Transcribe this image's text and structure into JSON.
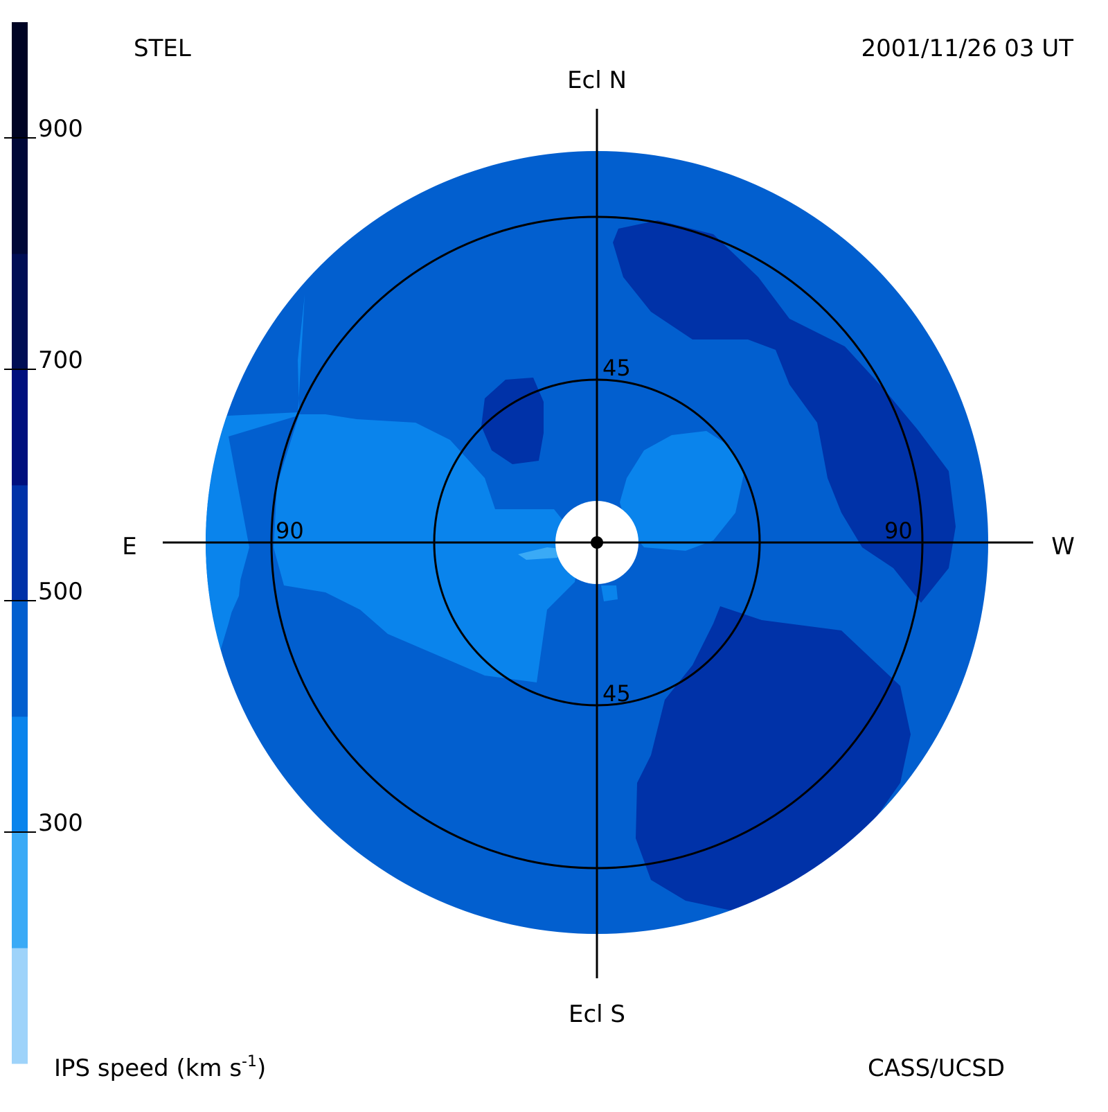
{
  "header": {
    "source": "STEL",
    "datetime": "2001/11/26 03 UT"
  },
  "footer": {
    "credit": "CASS/UCSD"
  },
  "colorbar": {
    "label_main": "IPS speed (km s",
    "label_exp": "-1",
    "label_close": ")",
    "ticks": [
      "900",
      "700",
      "500",
      "300"
    ],
    "bands": [
      {
        "from": 100,
        "to": 200,
        "color": "#9ed3fa"
      },
      {
        "from": 200,
        "to": 300,
        "color": "#3aaaf6"
      },
      {
        "from": 300,
        "to": 400,
        "color": "#0a84ec"
      },
      {
        "from": 400,
        "to": 500,
        "color": "#025fcf"
      },
      {
        "from": 500,
        "to": 600,
        "color": "#0032a8"
      },
      {
        "from": 600,
        "to": 700,
        "color": "#00107e"
      },
      {
        "from": 700,
        "to": 800,
        "color": "#000e55"
      },
      {
        "from": 800,
        "to": 900,
        "color": "#000838"
      },
      {
        "from": 900,
        "to": 1000,
        "color": "#000424"
      }
    ]
  },
  "compass": {
    "north": "Ecl N",
    "south": "Ecl S",
    "east": "E",
    "west": "W"
  },
  "rings": {
    "inner_label_top": "45",
    "inner_label_bottom": "45",
    "outer_label_left": "90",
    "outer_label_right": "90"
  },
  "chart_data": {
    "type": "heatmap",
    "projection": "fisheye sky map centred on the Sun",
    "quantity": "IPS speed",
    "units": "km s-1",
    "colorbar_range": [
      100,
      1000
    ],
    "colorbar_ticks": [
      300,
      500,
      700,
      900
    ],
    "elongation_rings_deg": [
      45,
      90
    ],
    "regions": [
      {
        "area": "outer disk background",
        "speed_km_s": 450
      },
      {
        "area": "east rim / east limb",
        "speed_km_s": 350
      },
      {
        "area": "inner east band near ecliptic",
        "speed_km_s": 350
      },
      {
        "area": "inner north-west lobe",
        "speed_km_s": 350
      },
      {
        "area": "north-west arc near 90 deg ring",
        "speed_km_s": 550
      },
      {
        "area": "south-west large patch",
        "speed_km_s": 550
      },
      {
        "area": "small north-east patch inside 45 deg",
        "speed_km_s": 550
      },
      {
        "area": "small streak near Sun (east)",
        "speed_km_s": 250
      }
    ],
    "grid": true
  }
}
